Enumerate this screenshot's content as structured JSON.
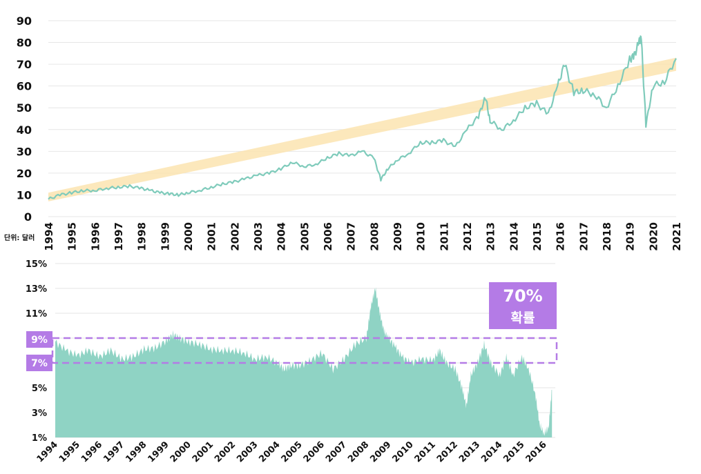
{
  "colors": {
    "series": "#8fd3c4",
    "series_line": "#7fcbbb",
    "trend_band": "#fbe4b0",
    "highlight": "#b47be6",
    "grid": "#e6e6e6"
  },
  "unit_label": "단위: 달러",
  "chart_data": [
    {
      "type": "line",
      "title": "",
      "xlabel": "",
      "ylabel": "",
      "y_ticks": [
        "0",
        "10",
        "20",
        "30",
        "40",
        "50",
        "60",
        "70",
        "80",
        "90"
      ],
      "ylim": [
        0,
        90
      ],
      "x_ticks": [
        "1994",
        "1995",
        "1996",
        "1997",
        "1998",
        "1999",
        "2000",
        "2001",
        "2002",
        "2003",
        "2004",
        "2005",
        "2006",
        "2007",
        "2008",
        "2009",
        "2010",
        "2011",
        "2012",
        "2013",
        "2014",
        "2015",
        "2016",
        "2017",
        "2018",
        "2019",
        "2020",
        "2021"
      ],
      "xlim": [
        1994,
        2021
      ],
      "grid": true,
      "series": [
        {
          "x": [
            1994.0,
            1994.5,
            1995.0,
            1995.5,
            1996.0,
            1996.5,
            1997.0,
            1997.5,
            1998.0,
            1998.4,
            1998.8,
            1999.2,
            1999.6,
            2000.0,
            2000.5,
            2001.0,
            2001.5,
            2002.0,
            2002.5,
            2003.0,
            2003.5,
            2004.0,
            2004.5,
            2005.0,
            2005.5,
            2006.0,
            2006.5,
            2007.0,
            2007.5,
            2008.0,
            2008.3,
            2008.6,
            2009.0,
            2009.5,
            2010.0,
            2010.5,
            2011.0,
            2011.5,
            2012.0,
            2012.5,
            2012.8,
            2013.0,
            2013.5,
            2014.0,
            2014.5,
            2015.0,
            2015.5,
            2015.9,
            2016.2,
            2016.6,
            2017.0,
            2017.5,
            2018.0,
            2018.5,
            2019.0,
            2019.2,
            2019.4,
            2019.5,
            2019.7,
            2020.0,
            2020.5,
            2021.0
          ],
          "values": [
            8,
            10,
            11,
            12,
            12,
            13,
            13.5,
            14,
            13,
            12,
            11,
            10.5,
            10,
            11,
            12,
            13.5,
            15,
            16,
            17.5,
            19,
            20,
            22,
            25,
            23,
            24,
            27,
            29,
            28,
            30,
            27,
            17,
            22,
            26,
            29,
            34,
            34,
            35,
            32,
            40,
            46,
            55,
            44,
            40,
            44,
            50,
            52,
            47,
            60,
            70,
            57,
            58,
            56,
            50,
            60,
            72,
            74,
            80,
            82,
            42,
            60,
            62,
            73
          ]
        }
      ],
      "trend_band": {
        "x": [
          1994,
          2021
        ],
        "lower": [
          7,
          67
        ],
        "upper": [
          11,
          73
        ]
      }
    },
    {
      "type": "area",
      "title": "",
      "xlabel": "",
      "ylabel": "",
      "y_ticks": [
        "1%",
        "3%",
        "5%",
        "7%",
        "9%",
        "11%",
        "13%",
        "15%"
      ],
      "ylim": [
        1,
        15
      ],
      "x_ticks": [
        "1994",
        "1995",
        "1996",
        "1997",
        "1998",
        "1999",
        "2000",
        "2001",
        "2002",
        "2003",
        "2004",
        "2005",
        "2006",
        "2007",
        "2008",
        "2009",
        "2010",
        "2011",
        "2012",
        "2013",
        "2014",
        "2015",
        "2016"
      ],
      "xlim": [
        1994,
        2016.5
      ],
      "grid": true,
      "series": [
        {
          "x": [
            1994.0,
            1994.5,
            1995.0,
            1995.5,
            1996.0,
            1996.5,
            1997.0,
            1997.5,
            1998.0,
            1998.5,
            1999.0,
            1999.3,
            1999.6,
            2000.0,
            2000.5,
            2001.0,
            2001.5,
            2002.0,
            2002.5,
            2003.0,
            2003.5,
            2004.0,
            2004.3,
            2004.6,
            2005.0,
            2005.5,
            2006.0,
            2006.5,
            2007.0,
            2007.5,
            2008.0,
            2008.2,
            2008.4,
            2008.6,
            2008.8,
            2009.0,
            2009.3,
            2009.6,
            2010.0,
            2010.5,
            2011.0,
            2011.3,
            2011.6,
            2012.0,
            2012.3,
            2012.5,
            2012.7,
            2013.0,
            2013.3,
            2013.6,
            2014.0,
            2014.3,
            2014.6,
            2015.0,
            2015.3,
            2015.6,
            2015.8,
            2016.0,
            2016.2,
            2016.35
          ],
          "values": [
            8.7,
            8.0,
            7.6,
            8.0,
            7.5,
            8.0,
            7.3,
            7.5,
            8.1,
            8.2,
            8.8,
            9.3,
            9.0,
            8.7,
            8.5,
            8.1,
            8.0,
            8.0,
            7.8,
            7.3,
            7.5,
            7.0,
            6.5,
            6.8,
            6.8,
            7.2,
            7.8,
            6.5,
            7.3,
            8.5,
            9.0,
            11.5,
            13.0,
            11.0,
            9.5,
            9.0,
            8.3,
            7.5,
            7.0,
            7.3,
            7.2,
            8.0,
            7.0,
            6.5,
            5.0,
            3.5,
            6.0,
            7.0,
            8.5,
            7.0,
            6.0,
            7.5,
            6.0,
            7.5,
            6.5,
            4.5,
            2.0,
            1.3,
            1.8,
            5.0
          ]
        }
      ],
      "highlight_band": [
        7,
        9
      ],
      "highlight_labels": [
        "9%",
        "7%"
      ],
      "annotation": {
        "line1": "70%",
        "line2": "확률"
      }
    }
  ]
}
